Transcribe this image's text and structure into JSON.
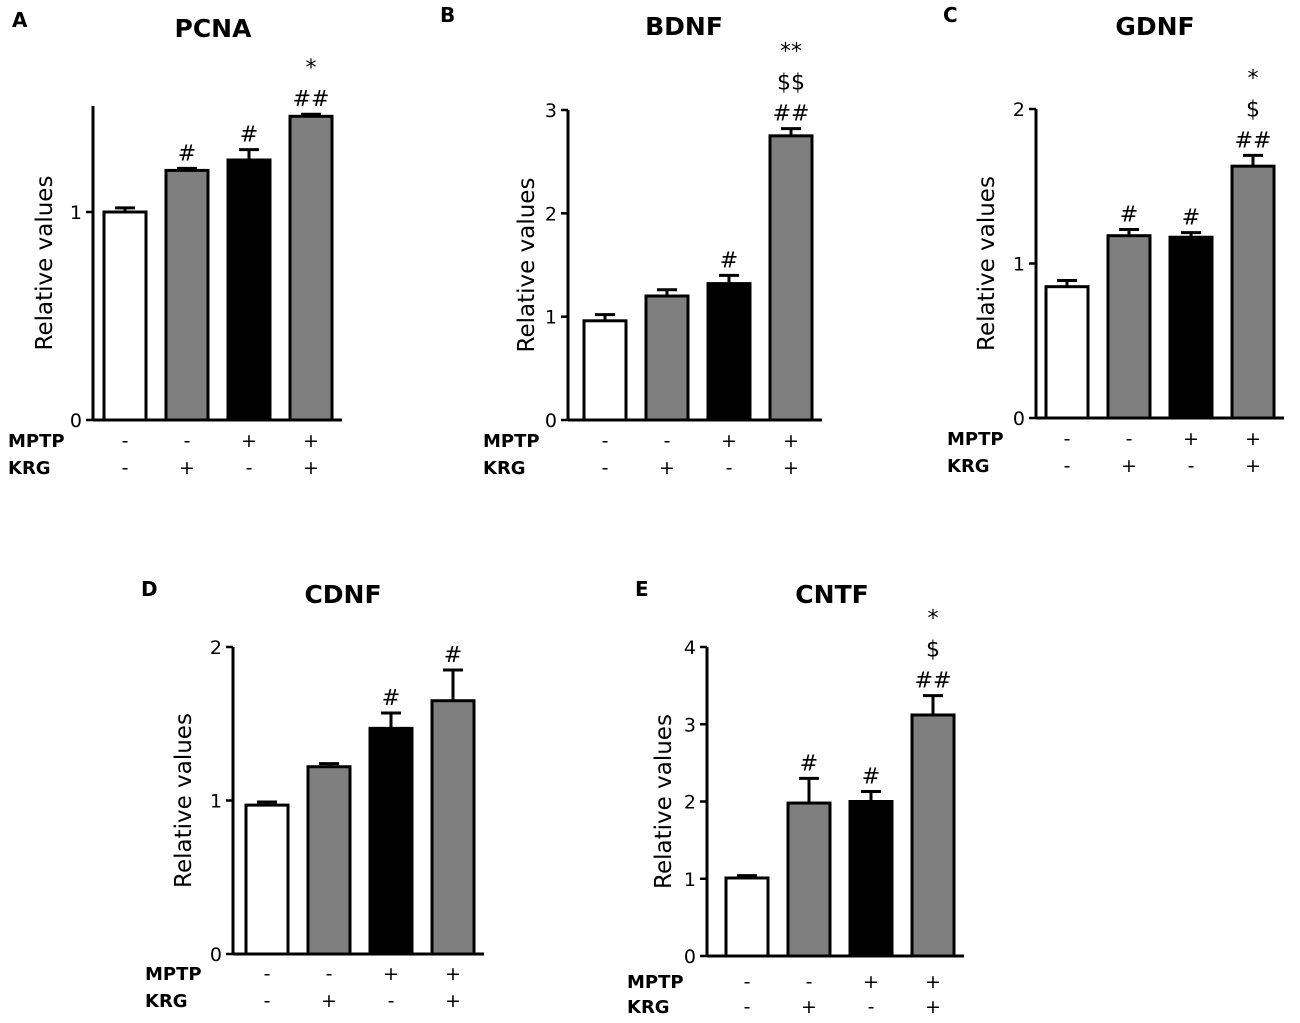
{
  "chart_data": [
    {
      "type": "bar",
      "panel": "A",
      "title": "PCNA",
      "ylabel": "Relative values",
      "xlabel": "",
      "ylim": [
        0,
        1.5
      ],
      "yticks": [
        "0",
        "1"
      ],
      "categories": [
        "MPTP- KRG-",
        "MPTP- KRG+",
        "MPTP+ KRG-",
        "MPTP+ KRG+"
      ],
      "values": [
        1.0,
        1.2,
        1.25,
        1.46
      ],
      "errors": [
        0.02,
        0.01,
        0.05,
        0.01
      ],
      "annotations": [
        "",
        "#",
        "#",
        "*\n##"
      ]
    },
    {
      "type": "bar",
      "panel": "B",
      "title": "BDNF",
      "ylabel": "Relative values",
      "xlabel": "",
      "ylim": [
        0,
        3
      ],
      "yticks": [
        "0",
        "1",
        "2",
        "3"
      ],
      "categories": [
        "MPTP- KRG-",
        "MPTP- KRG+",
        "MPTP+ KRG-",
        "MPTP+ KRG+"
      ],
      "values": [
        0.96,
        1.2,
        1.32,
        2.75
      ],
      "errors": [
        0.06,
        0.06,
        0.08,
        0.07
      ],
      "annotations": [
        "",
        "",
        "#",
        "**\n$$\n##"
      ]
    },
    {
      "type": "bar",
      "panel": "C",
      "title": "GDNF",
      "ylabel": "Relative values",
      "xlabel": "",
      "ylim": [
        0,
        2
      ],
      "yticks": [
        "0",
        "1",
        "2"
      ],
      "categories": [
        "MPTP- KRG-",
        "MPTP- KRG+",
        "MPTP+ KRG-",
        "MPTP+ KRG+"
      ],
      "values": [
        0.85,
        1.18,
        1.17,
        1.63
      ],
      "errors": [
        0.04,
        0.04,
        0.03,
        0.07
      ],
      "annotations": [
        "",
        "#",
        "#",
        "*\n$\n##"
      ]
    },
    {
      "type": "bar",
      "panel": "D",
      "title": "CDNF",
      "ylabel": "Relative values",
      "xlabel": "",
      "ylim": [
        0,
        2
      ],
      "yticks": [
        "0",
        "1",
        "2"
      ],
      "categories": [
        "MPTP- KRG-",
        "MPTP- KRG+",
        "MPTP+ KRG-",
        "MPTP+ KRG+"
      ],
      "values": [
        0.97,
        1.22,
        1.47,
        1.65
      ],
      "errors": [
        0.02,
        0.02,
        0.1,
        0.2
      ],
      "annotations": [
        "",
        "",
        "#",
        "#"
      ]
    },
    {
      "type": "bar",
      "panel": "E",
      "title": "CNTF",
      "ylabel": "Relative values",
      "xlabel": "",
      "ylim": [
        0,
        4
      ],
      "yticks": [
        "0",
        "1",
        "2",
        "3",
        "4"
      ],
      "categories": [
        "MPTP- KRG-",
        "MPTP- KRG+",
        "MPTP+ KRG-",
        "MPTP+ KRG+"
      ],
      "values": [
        1.01,
        1.98,
        2.0,
        3.12
      ],
      "errors": [
        0.03,
        0.32,
        0.13,
        0.25
      ],
      "annotations": [
        "",
        "#",
        "#",
        "*\n$\n##"
      ]
    }
  ],
  "conditions": {
    "row1_label": "MPTP",
    "row2_label": "KRG",
    "mptp": [
      "-",
      "-",
      "+",
      "+"
    ],
    "krg": [
      "-",
      "+",
      "-",
      "+"
    ]
  },
  "colors": {
    "bars": [
      "#ffffff",
      "#7f7f7f",
      "#000000",
      "#7f7f7f"
    ],
    "stroke": "#000000"
  }
}
